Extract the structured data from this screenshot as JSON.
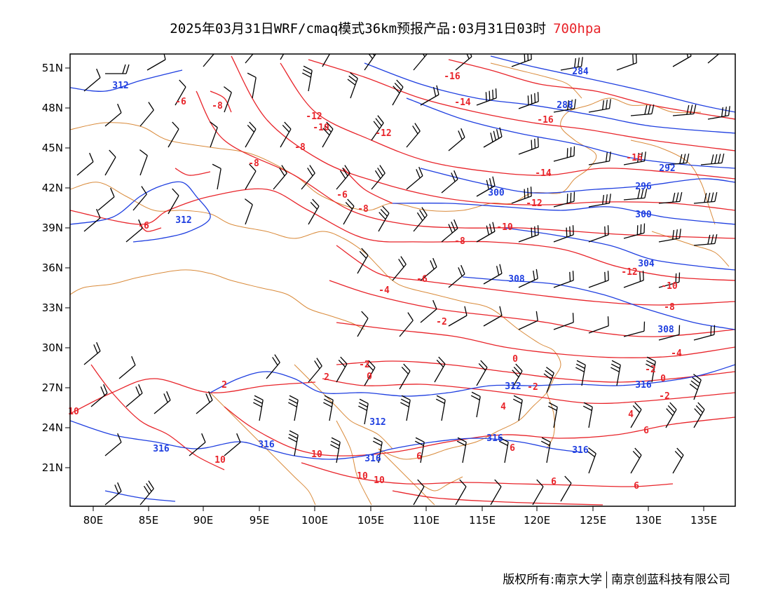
{
  "title": {
    "main": "2025年03月31日WRF/cmaq模式36km预报产品:03月31日03时",
    "level": "700hpa",
    "level_color": "#e8242a"
  },
  "axes": {
    "lon_labels": [
      "80E",
      "85E",
      "90E",
      "95E",
      "100E",
      "105E",
      "110E",
      "115E",
      "120E",
      "125E",
      "130E",
      "135E"
    ],
    "lat_labels": [
      "21N",
      "24N",
      "27N",
      "30N",
      "33N",
      "36N",
      "39N",
      "42N",
      "45N",
      "48N",
      "51N"
    ]
  },
  "layers": {
    "height_contours": {
      "color": "#1f3fe0",
      "labels": [
        "284",
        "288",
        "292",
        "296",
        "300",
        "304",
        "308",
        "312",
        "316"
      ]
    },
    "temperature_contours": {
      "color": "#e8242a",
      "labels": [
        "-16",
        "-14",
        "-12",
        "-10",
        "-8",
        "-6",
        "-4",
        "-2",
        "0",
        "2",
        "4",
        "6",
        "8",
        "10"
      ]
    },
    "borders": {
      "color": "#d98a3a"
    },
    "wind_barbs": {
      "color": "#000000"
    }
  },
  "footer": {
    "left": "版权所有:南京大学",
    "right": "南京创蓝科技有限公司"
  }
}
